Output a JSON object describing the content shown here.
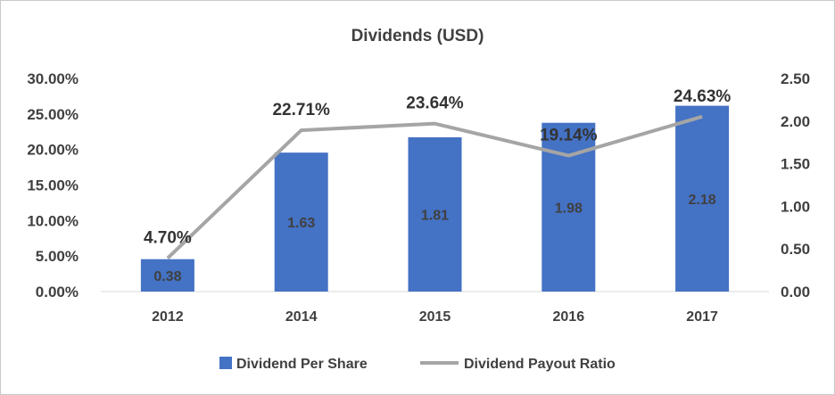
{
  "chart_data": {
    "type": "bar",
    "title": "Dividends (USD)",
    "categories": [
      "2012",
      "2014",
      "2015",
      "2016",
      "2017"
    ],
    "series": [
      {
        "name": "Dividend Per Share",
        "kind": "bar",
        "axis": "right",
        "color": "#4472C4",
        "values": [
          0.38,
          1.63,
          1.81,
          1.98,
          2.18
        ],
        "labels": [
          "0.38",
          "1.63",
          "1.81",
          "1.98",
          "2.18"
        ]
      },
      {
        "name": "Dividend Payout Ratio",
        "kind": "line",
        "axis": "left",
        "color": "#A5A5A5",
        "values": [
          4.7,
          22.71,
          23.64,
          19.14,
          24.63
        ],
        "labels": [
          "4.70%",
          "22.71%",
          "23.64%",
          "19.14%",
          "24.63%"
        ]
      }
    ],
    "y_left": {
      "min": 0,
      "max": 30,
      "ticks": [
        "0.00%",
        "5.00%",
        "10.00%",
        "15.00%",
        "20.00%",
        "25.00%",
        "30.00%"
      ]
    },
    "y_right": {
      "min": 0,
      "max": 2.5,
      "ticks": [
        "0.00",
        "0.50",
        "1.00",
        "1.50",
        "2.00",
        "2.50"
      ]
    },
    "grid": false,
    "legend_position": "bottom"
  }
}
